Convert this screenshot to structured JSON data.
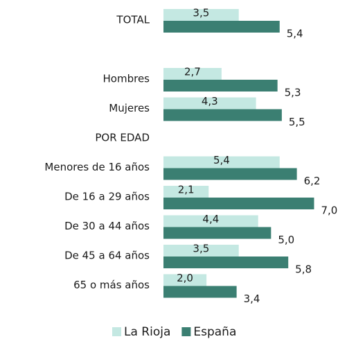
{
  "chart_data": {
    "type": "hbar",
    "categories": [
      "TOTAL",
      null,
      "Hombres",
      "Mujeres",
      "POR EDAD",
      "Menores de 16 años",
      "De 16 a 29 años",
      "De 30 a 44 años",
      "De 45 a 64 años",
      "65 o más años"
    ],
    "series": [
      {
        "name": "La Rioja",
        "color": "#c4e8e2",
        "values": [
          3.5,
          null,
          2.7,
          4.3,
          null,
          5.4,
          2.1,
          4.4,
          3.5,
          2.0
        ],
        "value_labels": [
          "3,5",
          null,
          "2,7",
          "4,3",
          null,
          "5,4",
          "2,1",
          "4,4",
          "3,5",
          "2,0"
        ]
      },
      {
        "name": "España",
        "color": "#3b7f72",
        "values": [
          5.4,
          null,
          5.3,
          5.5,
          null,
          6.2,
          7.0,
          5.0,
          5.8,
          3.4
        ],
        "value_labels": [
          "5,4",
          null,
          "5,3",
          "5,5",
          null,
          "6,2",
          "7,0",
          "5,0",
          "5,8",
          "3,4"
        ]
      }
    ],
    "xlim": [
      0,
      7.5
    ],
    "legend": "bottom"
  }
}
